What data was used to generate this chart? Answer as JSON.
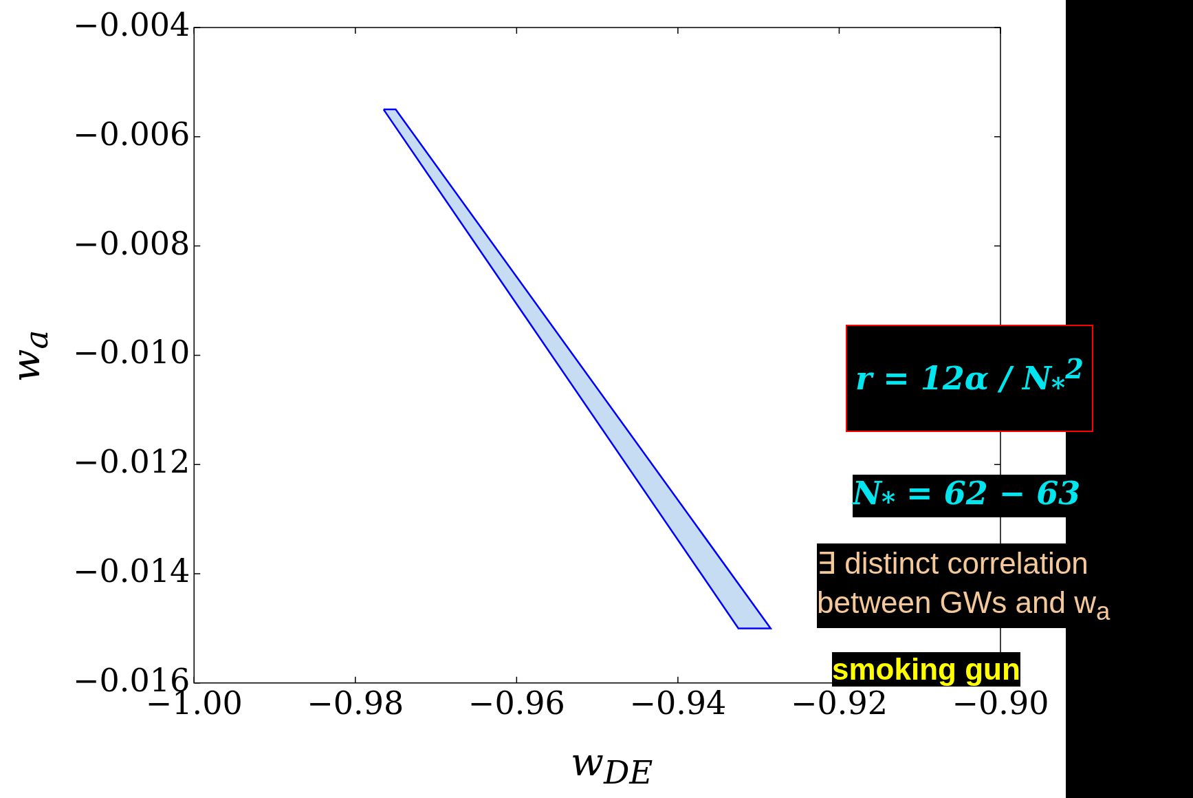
{
  "chart_data": {
    "type": "area",
    "xlabel": "w$_{DE}$",
    "ylabel": "w$_{a}$",
    "xlim": [
      -1.0,
      -0.9
    ],
    "ylim": [
      -0.016,
      -0.004
    ],
    "xticks": [
      {
        "value": -1.0,
        "label": "−1.00"
      },
      {
        "value": -0.98,
        "label": "−0.98"
      },
      {
        "value": -0.96,
        "label": "−0.96"
      },
      {
        "value": -0.94,
        "label": "−0.94"
      },
      {
        "value": -0.92,
        "label": "−0.92"
      },
      {
        "value": -0.9,
        "label": "−0.90"
      }
    ],
    "yticks": [
      {
        "value": -0.016,
        "label": "−0.016"
      },
      {
        "value": -0.014,
        "label": "−0.014"
      },
      {
        "value": -0.012,
        "label": "−0.012"
      },
      {
        "value": -0.01,
        "label": "−0.010"
      },
      {
        "value": -0.008,
        "label": "−0.008"
      },
      {
        "value": -0.006,
        "label": "−0.006"
      },
      {
        "value": -0.004,
        "label": "−0.004"
      }
    ],
    "series": [
      {
        "color": "#0000ff",
        "x": [
          -0.9765,
          -0.975,
          -0.9285,
          -0.9325,
          -0.9765
        ],
        "values": [
          -0.0055,
          -0.0055,
          -0.015,
          -0.015,
          -0.0055
        ]
      }
    ],
    "annotations": [
      "r = 12α / N$_{*}$$^{2}$",
      "N$_{*}$ = 62 − 63",
      "∃ distinct correlation between GWs and w$_{a}$",
      "smoking gun"
    ]
  }
}
